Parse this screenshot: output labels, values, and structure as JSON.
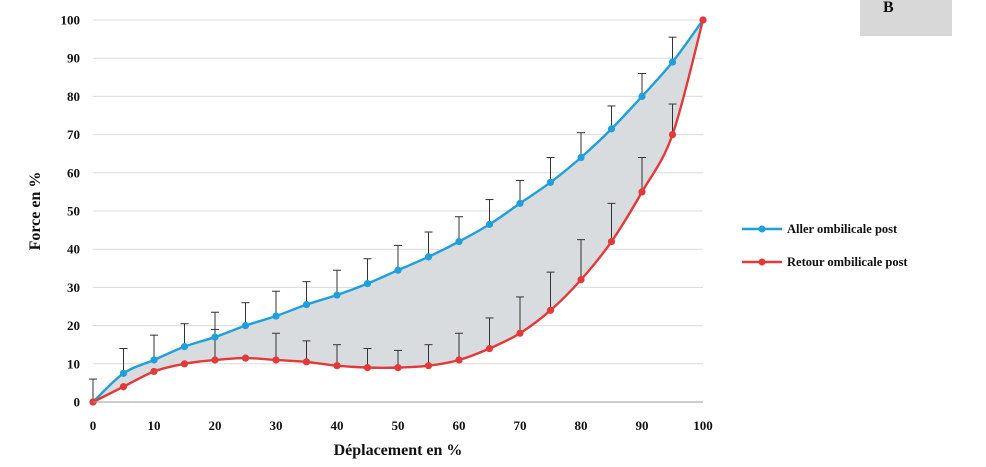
{
  "panel_label": "B",
  "chart_data": {
    "type": "line",
    "title": "",
    "xlabel": "Déplacement en %",
    "ylabel": "Force en %",
    "xlim": [
      0,
      100
    ],
    "ylim": [
      0,
      100
    ],
    "xticks": [
      "0",
      "10",
      "20",
      "30",
      "40",
      "50",
      "60",
      "70",
      "80",
      "90",
      "100"
    ],
    "yticks": [
      "0",
      "10",
      "20",
      "30",
      "40",
      "50",
      "60",
      "70",
      "80",
      "90",
      "100"
    ],
    "grid": "horizontal",
    "legend_position": "right",
    "area_between_series": true,
    "area_color": "#d9dcde",
    "x": [
      0,
      5,
      10,
      15,
      20,
      25,
      30,
      35,
      40,
      45,
      50,
      55,
      60,
      65,
      70,
      75,
      80,
      85,
      90,
      95,
      100
    ],
    "series": [
      {
        "name": "Aller ombilicale post",
        "color": "#1f9fdc",
        "values": [
          0,
          7.5,
          11,
          14.5,
          17,
          20,
          22.5,
          25.5,
          28,
          31,
          34.5,
          38,
          42,
          46.5,
          52,
          57.5,
          64,
          71.5,
          80,
          89,
          100
        ],
        "error_upper": [
          6,
          14,
          17.5,
          20.5,
          23.5,
          26,
          29,
          31.5,
          34.5,
          37.5,
          41,
          44.5,
          48.5,
          53,
          58,
          64,
          70.5,
          77.5,
          86,
          95.5,
          100
        ]
      },
      {
        "name": "Retour ombilicale post",
        "color": "#e3393a",
        "values": [
          0,
          4,
          8,
          10,
          11,
          11.5,
          11,
          10.5,
          9.5,
          9,
          9,
          9.5,
          11,
          14,
          18,
          24,
          32,
          42,
          55,
          70,
          100
        ],
        "error_upper": [
          null,
          null,
          null,
          null,
          19,
          null,
          18,
          16,
          15,
          14,
          13.5,
          15,
          18,
          22,
          27.5,
          34,
          42.5,
          52,
          64,
          78,
          null
        ]
      }
    ]
  }
}
